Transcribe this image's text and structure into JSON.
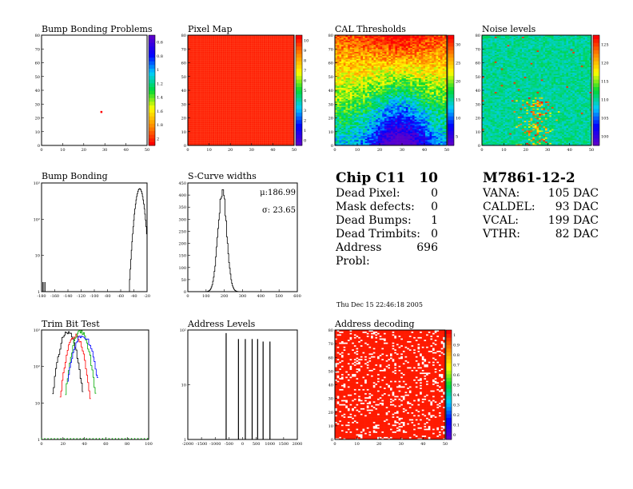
{
  "chart_data": [
    {
      "id": "bump",
      "title": "Bump Bonding Problems",
      "type": "heatmap",
      "xticks": [
        "0",
        "10",
        "20",
        "30",
        "40",
        "50"
      ],
      "yticks": [
        "0",
        "10",
        "20",
        "30",
        "40",
        "50",
        "60",
        "70",
        "80"
      ],
      "zticks": [
        "2",
        "1.8",
        "1.6",
        "1.4",
        "1.2",
        "1",
        "0.8",
        "0.6"
      ],
      "cells": [
        {
          "x": 29,
          "y": 25,
          "v": 0.6
        }
      ],
      "base": "white"
    },
    {
      "id": "pixelmap",
      "title": "Pixel Map",
      "type": "heatmap",
      "xticks": [
        "0",
        "10",
        "20",
        "30",
        "40",
        "50"
      ],
      "yticks": [
        "0",
        "10",
        "20",
        "30",
        "40",
        "50",
        "60",
        "70",
        "80"
      ],
      "zticks": [
        "0",
        "1",
        "2",
        "3",
        "4",
        "5",
        "6",
        "7",
        "8",
        "9",
        "10"
      ],
      "uniform_value": 10
    },
    {
      "id": "cal",
      "title": "CAL Thresholds",
      "type": "heatmap",
      "xticks": [
        "0",
        "10",
        "20",
        "30",
        "40",
        "50"
      ],
      "yticks": [
        "0",
        "10",
        "20",
        "30",
        "40",
        "50",
        "60",
        "70",
        "80"
      ],
      "zticks": [
        "5",
        "10",
        "15",
        "20",
        "25",
        "30"
      ],
      "zrange": [
        0,
        30
      ]
    },
    {
      "id": "noise",
      "title": "Noise levels",
      "type": "heatmap",
      "xticks": [
        "0",
        "10",
        "20",
        "30",
        "40",
        "50"
      ],
      "yticks": [
        "0",
        "10",
        "20",
        "30",
        "40",
        "50",
        "60",
        "70",
        "80"
      ],
      "zticks": [
        "100",
        "105",
        "110",
        "115",
        "120",
        "125"
      ],
      "zrange": [
        97,
        128
      ]
    },
    {
      "id": "bumpb",
      "title": "Bump Bonding",
      "type": "line",
      "xticks": [
        "-180",
        "-160",
        "-140",
        "-120",
        "-100",
        "-80",
        "-60",
        "-40",
        "-20"
      ],
      "yticks": [
        "1",
        "10",
        "10²",
        "10³"
      ],
      "ylog": true,
      "xlim": [
        -180,
        0
      ],
      "peak": {
        "center": -13,
        "width": 5,
        "height": 700
      },
      "left_bins": [
        {
          "x": -178,
          "v": 1.5
        },
        {
          "x": -176,
          "v": 1.5
        },
        {
          "x": -174,
          "v": 1.5
        }
      ]
    },
    {
      "id": "scurve",
      "title": "S-Curve widths",
      "type": "line",
      "xticks": [
        "0",
        "100",
        "200",
        "300",
        "400",
        "500",
        "600"
      ],
      "yticks": [
        "0",
        "50",
        "100",
        "150",
        "200",
        "250",
        "300",
        "350",
        "400",
        "450"
      ],
      "ylim": [
        0,
        470
      ],
      "xlim": [
        0,
        600
      ],
      "stats": {
        "mean_label": "μ:186.99",
        "sigma_label": "σ: 23.65"
      },
      "mean": 187,
      "sigma": 23.65,
      "peak": 440
    },
    {
      "id": "trim",
      "title": "Trim Bit Test",
      "type": "line",
      "xticks": [
        "0",
        "20",
        "40",
        "60",
        "80",
        "100"
      ],
      "yticks": [
        "1",
        "10",
        "10²",
        "10³"
      ],
      "ylog": true,
      "xlim": [
        0,
        100
      ],
      "series": [
        {
          "color": "#000000",
          "center": 24,
          "width": 5,
          "peak": 900
        },
        {
          "color": "#ff0000",
          "center": 31,
          "width": 5,
          "peak": 700
        },
        {
          "color": "#00aa00",
          "center": 36,
          "width": 5,
          "peak": 900
        },
        {
          "color": "#0000ff",
          "center": 38,
          "width": 6,
          "peak": 700
        }
      ]
    },
    {
      "id": "address",
      "title": "Address Levels",
      "type": "bar",
      "xticks": [
        "-2000",
        "-1500",
        "-1000",
        "-500",
        "0",
        "500",
        "1000",
        "1500",
        "2000"
      ],
      "yticks": [
        "1",
        "10",
        "10²"
      ],
      "ylog": true,
      "xlim": [
        -2000,
        2000
      ],
      "spikes": [
        {
          "x": -600,
          "v": 420
        },
        {
          "x": -150,
          "v": 300
        },
        {
          "x": 100,
          "v": 300
        },
        {
          "x": 350,
          "v": 300
        },
        {
          "x": 550,
          "v": 300
        },
        {
          "x": 750,
          "v": 260
        },
        {
          "x": 1000,
          "v": 260
        }
      ]
    },
    {
      "id": "decode",
      "title": "Address decoding",
      "type": "heatmap",
      "xticks": [
        "0",
        "10",
        "20",
        "30",
        "40",
        "50"
      ],
      "yticks": [
        "0",
        "10",
        "20",
        "30",
        "40",
        "50",
        "60",
        "70",
        "80"
      ],
      "zticks": [
        "0",
        "0.1",
        "0.2",
        "0.3",
        "0.4",
        "0.5",
        "0.6",
        "0.7",
        "0.8",
        "0.9",
        "1"
      ],
      "white_fraction": 0.15
    }
  ],
  "chip": {
    "title": "Chip C11",
    "number": "10",
    "rows": [
      {
        "label": "Dead Pixel:",
        "value": "0"
      },
      {
        "label": "Mask defects:",
        "value": "0"
      },
      {
        "label": "Dead Bumps:",
        "value": "1"
      },
      {
        "label": "Dead Trimbits:",
        "value": "0"
      },
      {
        "label": "Address Probl:",
        "value": "696"
      }
    ]
  },
  "module": {
    "title": "M7861-12-2",
    "rows": [
      {
        "label": "VANA:",
        "value": "105 DAC"
      },
      {
        "label": "CALDEL:",
        "value": "93 DAC"
      },
      {
        "label": "VCAL:",
        "value": "199 DAC"
      },
      {
        "label": "VTHR:",
        "value": "82 DAC"
      }
    ]
  },
  "timestamp": "Thu Dec 15 22:46:18 2005"
}
